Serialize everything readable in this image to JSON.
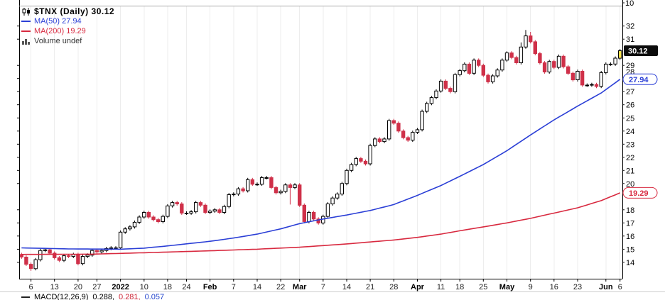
{
  "panel": {
    "upper_tick": "10"
  },
  "legend": {
    "title": "$TNX (Daily) 30.12",
    "ma50": "MA(50) 27.94",
    "ma200": "MA(200) 19.29",
    "volume": "Volume undef"
  },
  "colors": {
    "ma50": "#2b3fd6",
    "ma200": "#d8293f",
    "candle_down": "#cf3049",
    "candle_up": "#ffffff",
    "candle_stroke": "#000000",
    "last_candle": "#ffe24b",
    "grid": "#ededed",
    "axis": "#000000",
    "top_separator": "#aaaaaa",
    "macd_label": "#000000",
    "macd_v2": "#cc2233",
    "macd_v3": "#2244cc",
    "volume_icon": "#555555"
  },
  "y_axis": {
    "range": [
      12.75,
      33.55
    ],
    "ticks": [
      32,
      31,
      29,
      28,
      27,
      26,
      25,
      24,
      23,
      22,
      21,
      20,
      18,
      17,
      16,
      15,
      14
    ],
    "callouts": [
      {
        "text": "30.12",
        "value": 30.12,
        "style": "last-price"
      },
      {
        "text": "27.94",
        "value": 27.94,
        "style": "ma50"
      },
      {
        "text": "19.29",
        "value": 19.29,
        "style": "ma200"
      }
    ]
  },
  "x_axis": {
    "ticks": [
      {
        "label": "6",
        "i": 2
      },
      {
        "label": "13",
        "i": 7
      },
      {
        "label": "20",
        "i": 12
      },
      {
        "label": "27",
        "i": 16
      },
      {
        "label": "2022",
        "i": 21,
        "bold": true
      },
      {
        "label": "10",
        "i": 26
      },
      {
        "label": "18",
        "i": 31
      },
      {
        "label": "24",
        "i": 35
      },
      {
        "label": "Feb",
        "i": 40,
        "bold": true
      },
      {
        "label": "7",
        "i": 45
      },
      {
        "label": "14",
        "i": 50
      },
      {
        "label": "22",
        "i": 55
      },
      {
        "label": "Mar",
        "i": 59,
        "bold": true
      },
      {
        "label": "7",
        "i": 64
      },
      {
        "label": "14",
        "i": 69
      },
      {
        "label": "21",
        "i": 74
      },
      {
        "label": "28",
        "i": 79
      },
      {
        "label": "Apr",
        "i": 84,
        "bold": true
      },
      {
        "label": "11",
        "i": 89
      },
      {
        "label": "18",
        "i": 93
      },
      {
        "label": "25",
        "i": 98
      },
      {
        "label": "May",
        "i": 103,
        "bold": true
      },
      {
        "label": "9",
        "i": 108
      },
      {
        "label": "16",
        "i": 113
      },
      {
        "label": "23",
        "i": 118
      },
      {
        "label": "Jun",
        "i": 124,
        "bold": true
      },
      {
        "label": "6",
        "i": 127
      }
    ]
  },
  "macd": {
    "label": "MACD(12,26,9)",
    "v1": "0.288,",
    "v2": "0.281,",
    "v3": "0.057"
  },
  "chart_data": {
    "type": "candlestick",
    "symbol": "$TNX",
    "period": "Daily",
    "title": "$TNX (Daily) 30.12",
    "last_price": 30.12,
    "ma50_last": 27.94,
    "ma200_last": 19.29,
    "ylim": [
      12.75,
      33.55
    ],
    "x_tick_labels": [
      "6",
      "13",
      "20",
      "27",
      "2022",
      "10",
      "18",
      "24",
      "Feb",
      "7",
      "14",
      "22",
      "Mar",
      "7",
      "14",
      "21",
      "28",
      "Apr",
      "11",
      "18",
      "25",
      "May",
      "9",
      "16",
      "23",
      "Jun",
      "6"
    ],
    "first_open": 14.6,
    "wick": 0.13,
    "wick_overrides": {
      "2": {
        "l": 13.35
      },
      "57": {
        "l": 18.4
      },
      "106": {
        "h": 30.75
      },
      "107": {
        "h": 31.7
      },
      "108": {
        "h": 31.55
      }
    },
    "closes": [
      14.4,
      13.85,
      13.52,
      14.2,
      14.9,
      14.95,
      14.7,
      14.35,
      14.15,
      14.5,
      14.45,
      14.6,
      13.9,
      14.45,
      14.55,
      14.9,
      14.8,
      14.9,
      15.05,
      15.1,
      15.1,
      16.3,
      16.55,
      16.7,
      17.05,
      17.45,
      17.8,
      17.45,
      17.25,
      17.1,
      17.5,
      18.3,
      18.55,
      18.45,
      17.75,
      17.75,
      17.85,
      18.55,
      18.35,
      17.8,
      17.9,
      18.0,
      17.8,
      18.25,
      19.15,
      19.2,
      19.6,
      19.45,
      20.3,
      19.95,
      19.95,
      20.45,
      20.45,
      19.7,
      19.3,
      19.4,
      19.9,
      19.7,
      19.9,
      18.35,
      17.1,
      17.8,
      17.3,
      17.0,
      17.5,
      18.45,
      18.9,
      19.2,
      20.0,
      21.0,
      21.45,
      21.9,
      21.7,
      21.5,
      22.9,
      23.4,
      23.2,
      23.4,
      24.8,
      24.6,
      24.0,
      23.5,
      23.3,
      23.9,
      24.1,
      25.5,
      26.1,
      26.55,
      27.05,
      27.8,
      27.25,
      27.0,
      28.3,
      28.6,
      29.1,
      28.4,
      29.4,
      29.0,
      28.25,
      27.75,
      28.2,
      28.65,
      29.4,
      29.95,
      29.6,
      29.2,
      30.4,
      31.25,
      30.8,
      29.9,
      29.2,
      28.5,
      29.3,
      28.85,
      29.7,
      28.9,
      28.4,
      27.9,
      28.55,
      27.5,
      27.5,
      27.55,
      27.4,
      28.45,
      29.1,
      29.1,
      29.55,
      30.12
    ],
    "ma50_anchors": [
      [
        0,
        15.1
      ],
      [
        10,
        15.02
      ],
      [
        21,
        15.0
      ],
      [
        26,
        15.08
      ],
      [
        31,
        15.25
      ],
      [
        40,
        15.6
      ],
      [
        45,
        15.85
      ],
      [
        50,
        16.15
      ],
      [
        55,
        16.55
      ],
      [
        59,
        16.95
      ],
      [
        64,
        17.3
      ],
      [
        69,
        17.6
      ],
      [
        74,
        17.95
      ],
      [
        79,
        18.4
      ],
      [
        84,
        19.1
      ],
      [
        89,
        19.85
      ],
      [
        93,
        20.55
      ],
      [
        98,
        21.45
      ],
      [
        103,
        22.5
      ],
      [
        108,
        23.7
      ],
      [
        113,
        24.85
      ],
      [
        118,
        25.9
      ],
      [
        123,
        26.9
      ],
      [
        127,
        27.94
      ]
    ],
    "ma200_anchors": [
      [
        0,
        14.6
      ],
      [
        15,
        14.62
      ],
      [
        21,
        14.68
      ],
      [
        31,
        14.78
      ],
      [
        40,
        14.88
      ],
      [
        50,
        15.0
      ],
      [
        59,
        15.15
      ],
      [
        69,
        15.4
      ],
      [
        79,
        15.7
      ],
      [
        84,
        15.9
      ],
      [
        89,
        16.15
      ],
      [
        93,
        16.4
      ],
      [
        98,
        16.7
      ],
      [
        103,
        17.0
      ],
      [
        108,
        17.35
      ],
      [
        113,
        17.75
      ],
      [
        118,
        18.15
      ],
      [
        123,
        18.7
      ],
      [
        127,
        19.29
      ]
    ]
  }
}
